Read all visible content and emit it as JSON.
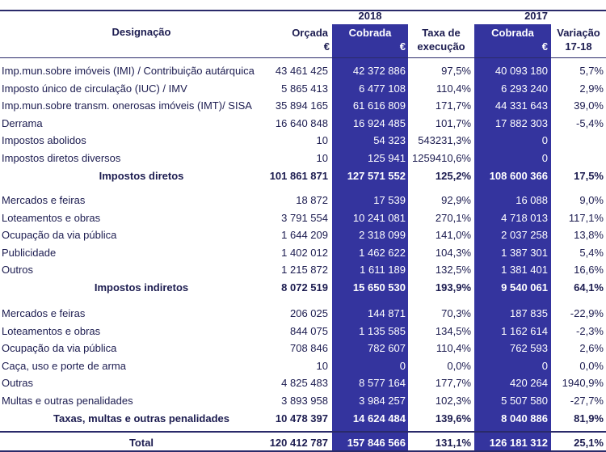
{
  "header": {
    "year_2018": "2018",
    "year_2017": "2017",
    "designacao": "Designação",
    "orcada": "Orçada",
    "cobrada_2018": "Cobrada",
    "taxa_line1": "Taxa de",
    "taxa_line2": "execução",
    "cobrada_2017": "Cobrada",
    "variacao_line1": "Variação",
    "variacao_line2": "17-18",
    "euro_orcada": "€",
    "euro_cobrada_2018": "€",
    "euro_cobrada_2017": "€"
  },
  "colors": {
    "accent": "#34349e",
    "text": "#1c1c50"
  },
  "groups": [
    {
      "rows": [
        {
          "label": "Imp.mun.sobre imóveis (IMI) / Contribuição autárquica",
          "orcada": "43 461 425",
          "cobrada2018": "42 372 886",
          "taxa": "97,5%",
          "cobrada2017": "40 093 180",
          "variacao": "5,7%"
        },
        {
          "label": "Imposto único de circulação (IUC) / IMV",
          "orcada": "5 865 413",
          "cobrada2018": "6 477 108",
          "taxa": "110,4%",
          "cobrada2017": "6 293 240",
          "variacao": "2,9%"
        },
        {
          "label": "Imp.mun.sobre transm. onerosas imóveis (IMT)/ SISA",
          "orcada": "35 894 165",
          "cobrada2018": "61 616 809",
          "taxa": "171,7%",
          "cobrada2017": "44 331 643",
          "variacao": "39,0%"
        },
        {
          "label": "Derrama",
          "orcada": "16 640 848",
          "cobrada2018": "16 924 485",
          "taxa": "101,7%",
          "cobrada2017": "17 882 303",
          "variacao": "-5,4%"
        },
        {
          "label": "Impostos abolidos",
          "orcada": "10",
          "cobrada2018": "54 323",
          "taxa": "543231,3%",
          "cobrada2017": "0",
          "variacao": ""
        },
        {
          "label": "Impostos diretos diversos",
          "orcada": "10",
          "cobrada2018": "125 941",
          "taxa": "1259410,6%",
          "cobrada2017": "0",
          "variacao": ""
        }
      ],
      "subtotal": {
        "label": "Impostos diretos",
        "orcada": "101 861 871",
        "cobrada2018": "127 571 552",
        "taxa": "125,2%",
        "cobrada2017": "108 600 366",
        "variacao": "17,5%"
      }
    },
    {
      "rows": [
        {
          "label": "Mercados e feiras",
          "orcada": "18 872",
          "cobrada2018": "17 539",
          "taxa": "92,9%",
          "cobrada2017": "16 088",
          "variacao": "9,0%"
        },
        {
          "label": "Loteamentos e obras",
          "orcada": "3 791 554",
          "cobrada2018": "10 241 081",
          "taxa": "270,1%",
          "cobrada2017": "4 718 013",
          "variacao": "117,1%"
        },
        {
          "label": "Ocupação da via pública",
          "orcada": "1 644 209",
          "cobrada2018": "2 318 099",
          "taxa": "141,0%",
          "cobrada2017": "2 037 258",
          "variacao": "13,8%"
        },
        {
          "label": "Publicidade",
          "orcada": "1 402 012",
          "cobrada2018": "1 462 622",
          "taxa": "104,3%",
          "cobrada2017": "1 387 301",
          "variacao": "5,4%"
        },
        {
          "label": "Outros",
          "orcada": "1 215 872",
          "cobrada2018": "1 611 189",
          "taxa": "132,5%",
          "cobrada2017": "1 381 401",
          "variacao": "16,6%"
        }
      ],
      "subtotal": {
        "label": "Impostos indiretos",
        "orcada": "8 072 519",
        "cobrada2018": "15 650 530",
        "taxa": "193,9%",
        "cobrada2017": "9 540 061",
        "variacao": "64,1%"
      }
    },
    {
      "rows": [
        {
          "label": "Mercados e feiras",
          "orcada": "206 025",
          "cobrada2018": "144 871",
          "taxa": "70,3%",
          "cobrada2017": "187 835",
          "variacao": "-22,9%"
        },
        {
          "label": "Loteamentos e obras",
          "orcada": "844 075",
          "cobrada2018": "1 135 585",
          "taxa": "134,5%",
          "cobrada2017": "1 162 614",
          "variacao": "-2,3%"
        },
        {
          "label": "Ocupação da via pública",
          "orcada": "708 846",
          "cobrada2018": "782 607",
          "taxa": "110,4%",
          "cobrada2017": "762 593",
          "variacao": "2,6%"
        },
        {
          "label": "Caça, uso e porte de arma",
          "orcada": "10",
          "cobrada2018": "0",
          "taxa": "0,0%",
          "cobrada2017": "0",
          "variacao": "0,0%"
        },
        {
          "label": "Outras",
          "orcada": "4 825 483",
          "cobrada2018": "8 577 164",
          "taxa": "177,7%",
          "cobrada2017": "420 264",
          "variacao": "1940,9%"
        },
        {
          "label": "Multas e outras penalidades",
          "orcada": "3 893 958",
          "cobrada2018": "3 984 257",
          "taxa": "102,3%",
          "cobrada2017": "5 507 580",
          "variacao": "-27,7%"
        }
      ],
      "subtotal": {
        "label": "Taxas, multas e outras penalidades",
        "orcada": "10 478 397",
        "cobrada2018": "14 624 484",
        "taxa": "139,6%",
        "cobrada2017": "8 040 886",
        "variacao": "81,9%"
      }
    }
  ],
  "total": {
    "label": "Total",
    "orcada": "120 412 787",
    "cobrada2018": "157 846 566",
    "taxa": "131,1%",
    "cobrada2017": "126 181 312",
    "variacao": "25,1%"
  }
}
